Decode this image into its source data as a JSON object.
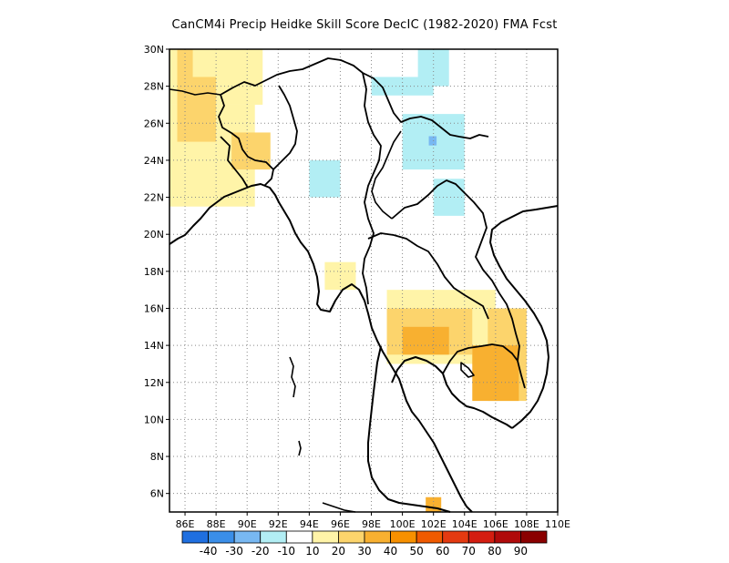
{
  "title": "CanCM4i Precip Heidke Skill Score DecIC (1982-2020) FMA Fcst",
  "axes": {
    "lon_ticks": [
      "86E",
      "88E",
      "90E",
      "92E",
      "94E",
      "96E",
      "98E",
      "100E",
      "102E",
      "104E",
      "106E",
      "108E",
      "110E"
    ],
    "lat_ticks": [
      "30N",
      "28N",
      "26N",
      "24N",
      "22N",
      "20N",
      "18N",
      "16N",
      "14N",
      "12N",
      "10N",
      "8N",
      "6N"
    ],
    "lon_range": [
      85,
      110
    ],
    "lat_range": [
      5,
      30
    ]
  },
  "colorbar": {
    "colors": [
      "#1f6fe0",
      "#3a8ee8",
      "#78b8f2",
      "#b2eef4",
      "#ffffff",
      "#fff4a8",
      "#fcd46c",
      "#f8b030",
      "#f79000",
      "#f05a00",
      "#e43a10",
      "#d41d10",
      "#b00a0a",
      "#8a0000"
    ],
    "labels": [
      "-40",
      "-30",
      "-20",
      "-10",
      "10",
      "20",
      "30",
      "40",
      "50",
      "60",
      "70",
      "80",
      "90"
    ]
  },
  "skill_regions": [
    {
      "level": "10",
      "color": "#fff4a8",
      "lon": [
        85,
        91
      ],
      "lat": [
        27,
        30
      ]
    },
    {
      "level": "10",
      "color": "#fff4a8",
      "lon": [
        85,
        90.5
      ],
      "lat": [
        21.5,
        27
      ]
    },
    {
      "level": "20",
      "color": "#fcd46c",
      "lon": [
        85.5,
        88
      ],
      "lat": [
        25,
        28.5
      ]
    },
    {
      "level": "20",
      "color": "#fcd46c",
      "lon": [
        89,
        91.5
      ],
      "lat": [
        23.5,
        25.5
      ]
    },
    {
      "level": "20",
      "color": "#fcd46c",
      "lon": [
        85.5,
        86.5
      ],
      "lat": [
        28.5,
        30
      ]
    },
    {
      "level": "10",
      "color": "#fff4a8",
      "lon": [
        95,
        97
      ],
      "lat": [
        17,
        18.5
      ]
    },
    {
      "level": "10",
      "color": "#fff4a8",
      "lon": [
        99,
        106
      ],
      "lat": [
        13,
        17
      ]
    },
    {
      "level": "20",
      "color": "#fcd46c",
      "lon": [
        99,
        104.5
      ],
      "lat": [
        13.5,
        16
      ]
    },
    {
      "level": "30",
      "color": "#f8b030",
      "lon": [
        100,
        103
      ],
      "lat": [
        13.5,
        15
      ]
    },
    {
      "level": "20",
      "color": "#fcd46c",
      "lon": [
        105.5,
        108
      ],
      "lat": [
        11,
        16
      ]
    },
    {
      "level": "30",
      "color": "#f8b030",
      "lon": [
        104.5,
        107.5
      ],
      "lat": [
        11,
        14
      ]
    },
    {
      "level": "30",
      "color": "#f8b030",
      "lon": [
        101.5,
        102.5
      ],
      "lat": [
        5,
        5.8
      ]
    },
    {
      "level": "-10",
      "color": "#b2eef4",
      "lon": [
        101,
        103
      ],
      "lat": [
        28,
        30
      ]
    },
    {
      "level": "-10",
      "color": "#b2eef4",
      "lon": [
        98,
        102
      ],
      "lat": [
        27.5,
        28.5
      ]
    },
    {
      "level": "-10",
      "color": "#b2eef4",
      "lon": [
        100,
        104
      ],
      "lat": [
        23.5,
        26.5
      ]
    },
    {
      "level": "-10",
      "color": "#b2eef4",
      "lon": [
        94,
        96
      ],
      "lat": [
        22,
        24
      ]
    },
    {
      "level": "-10",
      "color": "#b2eef4",
      "lon": [
        102,
        104
      ],
      "lat": [
        21,
        23
      ]
    },
    {
      "level": "-20",
      "color": "#78b8f2",
      "lon": [
        101.7,
        102.2
      ],
      "lat": [
        24.8,
        25.3
      ]
    }
  ]
}
